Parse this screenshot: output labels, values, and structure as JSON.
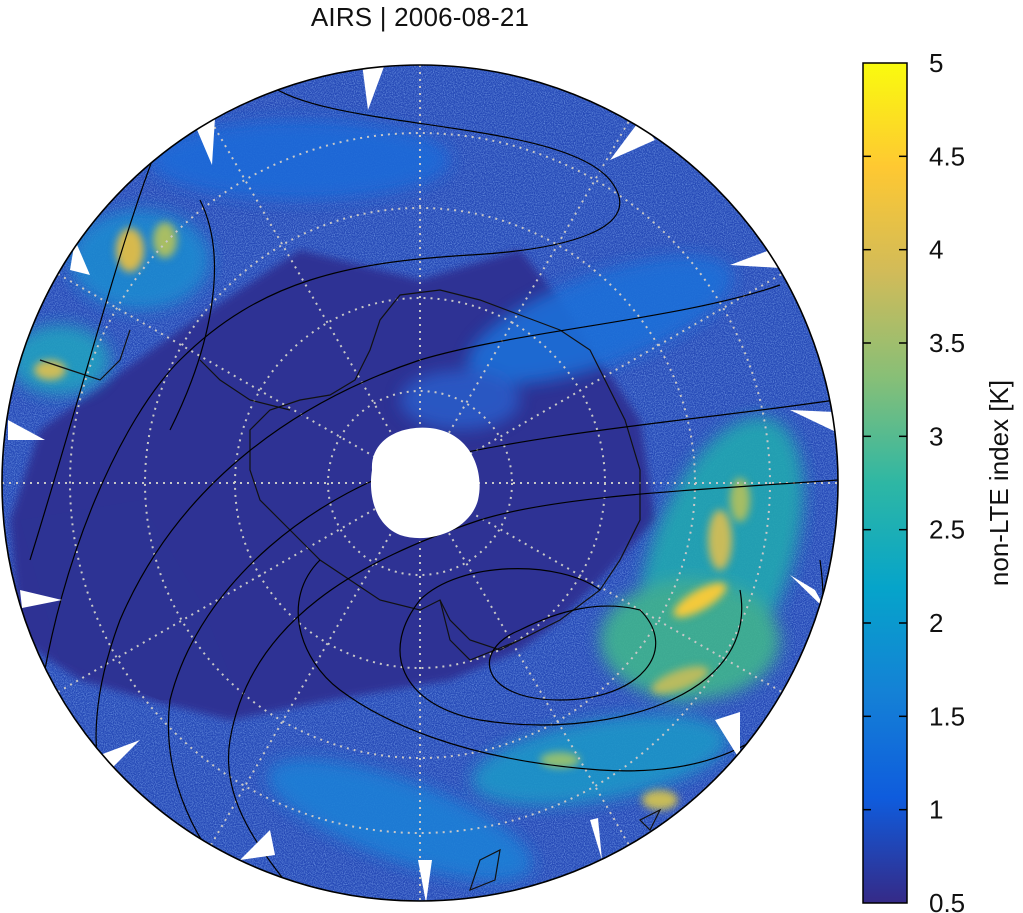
{
  "title": "AIRS | 2006-08-21",
  "colorbar": {
    "label": "non-LTE index [K]",
    "min": 0.5,
    "max": 5,
    "ticks": [
      "0.5",
      "1",
      "1.5",
      "2",
      "2.5",
      "3",
      "3.5",
      "4",
      "4.5",
      "5"
    ],
    "colors": [
      "#352a87",
      "#0f5cdd",
      "#1481d6",
      "#06a4ca",
      "#2eb7a4",
      "#87bf77",
      "#d1bb59",
      "#fec832",
      "#f9fb0e"
    ]
  },
  "map": {
    "projection": "south polar stereographic",
    "background": "#2c3a9a",
    "graticule_color": "#c8c8c8",
    "contour_color": "#000000",
    "data_gap_color": "#ffffff"
  }
}
